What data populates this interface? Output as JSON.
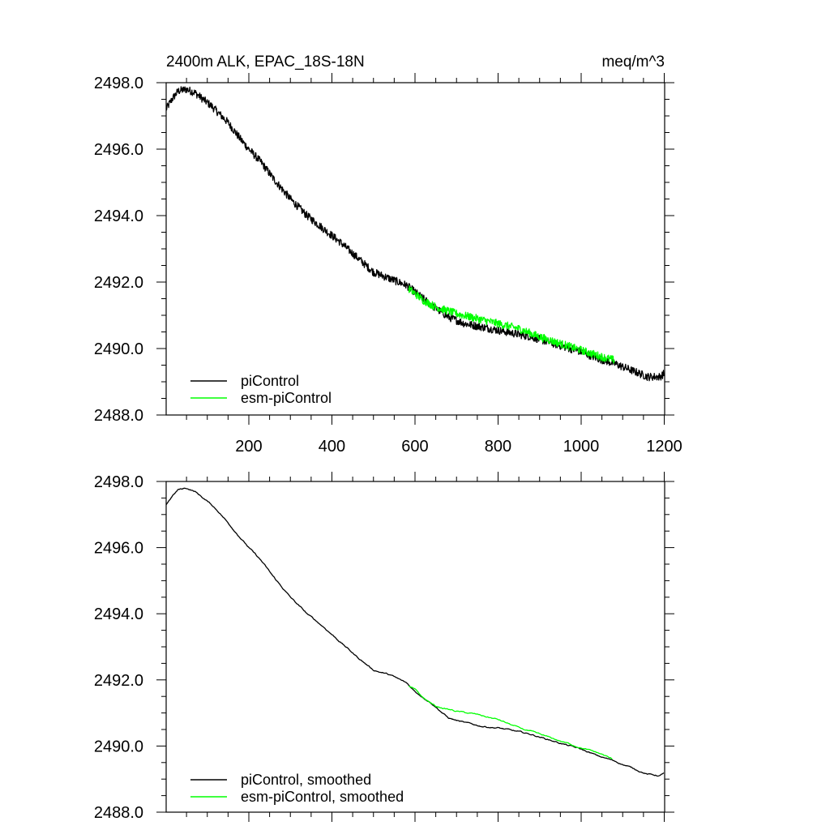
{
  "figure": {
    "title": "2400m ALK, EPAC_18S-18N",
    "units": "meq/m^3"
  },
  "chart_data": [
    {
      "type": "line",
      "panel": "raw",
      "title": "2400m ALK, EPAC_18S-18N",
      "units": "meq/m^3",
      "xlabel": "",
      "ylabel": "",
      "xlim": [
        1,
        1201
      ],
      "ylim": [
        2488.0,
        2498.0
      ],
      "xticks": [
        200,
        400,
        600,
        800,
        1000,
        1200
      ],
      "xtick_labels": [
        "200",
        "400",
        "600",
        "800",
        "1000",
        "1200"
      ],
      "yticks": [
        2488,
        2490,
        2492,
        2494,
        2496,
        2498
      ],
      "ytick_labels": [
        "2488.0",
        "2490.0",
        "2492.0",
        "2494.0",
        "2496.0",
        "2498.0"
      ],
      "grid": false,
      "legend_position": "bottom-left",
      "noise_amplitude": 0.12,
      "series": [
        {
          "name": "piControl",
          "color": "#000000",
          "x": [
            1,
            15,
            30,
            50,
            70,
            90,
            110,
            130,
            150,
            180,
            200,
            230,
            260,
            300,
            340,
            380,
            420,
            460,
            500,
            540,
            580,
            600,
            640,
            680,
            720,
            760,
            800,
            840,
            880,
            920,
            960,
            1000,
            1040,
            1080,
            1120,
            1160,
            1190,
            1200
          ],
          "values": [
            2497.2,
            2497.5,
            2497.75,
            2497.8,
            2497.7,
            2497.5,
            2497.3,
            2497.05,
            2496.8,
            2496.3,
            2496.0,
            2495.6,
            2495.1,
            2494.5,
            2494.0,
            2493.6,
            2493.2,
            2492.75,
            2492.3,
            2492.1,
            2491.9,
            2491.7,
            2491.3,
            2490.95,
            2490.75,
            2490.65,
            2490.55,
            2490.45,
            2490.35,
            2490.2,
            2490.05,
            2489.9,
            2489.7,
            2489.55,
            2489.35,
            2489.15,
            2489.15,
            2489.25
          ]
        },
        {
          "name": "esm-piControl",
          "color": "#00ff00",
          "x": [
            585,
            600,
            620,
            650,
            700,
            750,
            800,
            850,
            900,
            950,
            1000,
            1050,
            1080
          ],
          "values": [
            2491.8,
            2491.65,
            2491.45,
            2491.25,
            2491.05,
            2490.9,
            2490.75,
            2490.6,
            2490.35,
            2490.15,
            2489.95,
            2489.75,
            2489.65
          ]
        }
      ]
    },
    {
      "type": "line",
      "panel": "smoothed",
      "xlabel": "",
      "ylabel": "",
      "xlim": [
        1,
        1201
      ],
      "ylim": [
        2488.0,
        2498.0
      ],
      "xticks": [
        200,
        400,
        600,
        800,
        1000,
        1200
      ],
      "yticks": [
        2488,
        2490,
        2492,
        2494,
        2496,
        2498
      ],
      "ytick_labels": [
        "2488.0",
        "2490.0",
        "2492.0",
        "2494.0",
        "2496.0",
        "2498.0"
      ],
      "grid": false,
      "legend_position": "bottom-left",
      "noise_amplitude": 0.03,
      "series": [
        {
          "name": "piControl, smoothed",
          "color": "#000000",
          "x": [
            1,
            15,
            30,
            50,
            70,
            90,
            110,
            130,
            150,
            180,
            200,
            230,
            260,
            300,
            340,
            380,
            420,
            460,
            500,
            540,
            580,
            600,
            640,
            680,
            720,
            760,
            800,
            840,
            880,
            920,
            960,
            1000,
            1040,
            1080,
            1120,
            1160,
            1190,
            1200
          ],
          "values": [
            2497.3,
            2497.55,
            2497.75,
            2497.8,
            2497.7,
            2497.5,
            2497.3,
            2497.05,
            2496.75,
            2496.3,
            2496.0,
            2495.6,
            2495.1,
            2494.5,
            2494.0,
            2493.6,
            2493.15,
            2492.7,
            2492.3,
            2492.15,
            2491.9,
            2491.65,
            2491.3,
            2490.85,
            2490.7,
            2490.6,
            2490.55,
            2490.45,
            2490.35,
            2490.2,
            2490.05,
            2489.9,
            2489.7,
            2489.55,
            2489.35,
            2489.15,
            2489.1,
            2489.2
          ]
        },
        {
          "name": "esm-piControl, smoothed",
          "color": "#00ff00",
          "x": [
            585,
            600,
            620,
            650,
            700,
            750,
            800,
            850,
            900,
            950,
            1000,
            1050,
            1075
          ],
          "values": [
            2491.8,
            2491.7,
            2491.45,
            2491.2,
            2491.05,
            2490.95,
            2490.8,
            2490.55,
            2490.35,
            2490.15,
            2489.95,
            2489.75,
            2489.6
          ]
        }
      ]
    }
  ]
}
